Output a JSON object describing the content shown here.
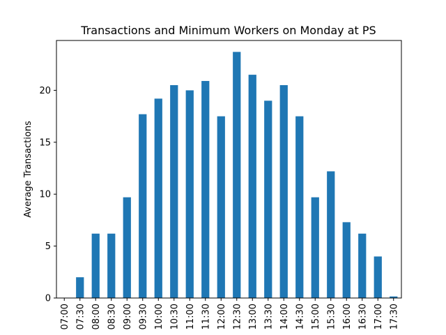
{
  "chart_data": {
    "type": "bar",
    "title": "Transactions and Minimum Workers on Monday at PS",
    "xlabel": "",
    "ylabel": "Average Transactions",
    "categories": [
      "07:00",
      "07:30",
      "08:00",
      "08:30",
      "09:00",
      "09:30",
      "10:00",
      "10:30",
      "11:00",
      "11:30",
      "12:00",
      "12:30",
      "13:00",
      "13:30",
      "14:00",
      "14:30",
      "15:00",
      "15:30",
      "16:00",
      "16:30",
      "17:00",
      "17:30"
    ],
    "values": [
      0,
      2.0,
      6.2,
      6.2,
      9.7,
      17.7,
      19.2,
      20.5,
      20.0,
      20.9,
      17.5,
      23.7,
      21.5,
      19.0,
      20.5,
      17.5,
      9.7,
      12.2,
      7.3,
      6.2,
      4.0,
      0.15
    ],
    "ylim": [
      0,
      24.8
    ],
    "yticks": [
      0,
      5,
      10,
      15,
      20
    ],
    "grid": false,
    "bar_color": "#1f77b4"
  }
}
